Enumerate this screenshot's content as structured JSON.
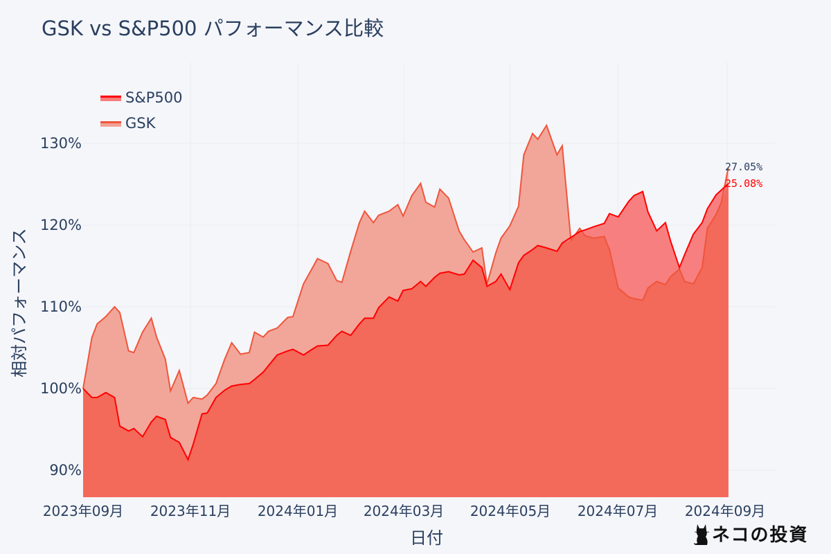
{
  "title": "GSK vs S&P500 パフォーマンス比較",
  "legend": [
    {
      "name": "S&P500",
      "line_color": "#ff0000",
      "fill_color": "#f87c7c"
    },
    {
      "name": "GSK",
      "line_color": "#ef553b",
      "fill_color": "#f1a195"
    }
  ],
  "axes": {
    "xlabel": "日付",
    "ylabel": "相対パフォーマンス",
    "yticks": [
      "130%",
      "120%",
      "110%",
      "100%",
      "90%"
    ],
    "xticks": [
      "2023年09月",
      "2023年11月",
      "2024年01月",
      "2024年03月",
      "2024年05月",
      "2024年07月",
      "2024年09月"
    ]
  },
  "end_labels": {
    "gsk": {
      "text": "27.05%",
      "color": "#2a3f5f"
    },
    "sp500": {
      "text": "25.08%",
      "color": "#ff0000"
    }
  },
  "watermark": {
    "text": "ネコの投資",
    "icon": "cat-icon"
  },
  "chart_data": {
    "type": "area",
    "title": "GSK vs S&P500 パフォーマンス比較",
    "xlabel": "日付",
    "ylabel": "相対パフォーマンス",
    "ylim": [
      86.5,
      139
    ],
    "yticks": [
      90,
      100,
      110,
      120,
      130
    ],
    "xticks": [
      "2023-09",
      "2023-11",
      "2024-01",
      "2024-03",
      "2024-05",
      "2024-07",
      "2024-09"
    ],
    "x_range": [
      "2023-08-31",
      "2024-09-30"
    ],
    "grid": true,
    "legend_position": "top-left",
    "x": [
      "2023-08-31",
      "2023-09-05",
      "2023-09-08",
      "2023-09-13",
      "2023-09-18",
      "2023-09-21",
      "2023-09-26",
      "2023-09-29",
      "2023-10-04",
      "2023-10-09",
      "2023-10-12",
      "2023-10-17",
      "2023-10-20",
      "2023-10-25",
      "2023-10-30",
      "2023-11-02",
      "2023-11-07",
      "2023-11-10",
      "2023-11-15",
      "2023-11-20",
      "2023-11-24",
      "2023-11-29",
      "2023-12-04",
      "2023-12-07",
      "2023-12-12",
      "2023-12-15",
      "2023-12-20",
      "2023-12-26",
      "2023-12-29",
      "2024-01-04",
      "2024-01-09",
      "2024-01-12",
      "2024-01-18",
      "2024-01-23",
      "2024-01-26",
      "2024-01-31",
      "2024-02-05",
      "2024-02-08",
      "2024-02-13",
      "2024-02-16",
      "2024-02-22",
      "2024-02-27",
      "2024-03-01",
      "2024-03-06",
      "2024-03-11",
      "2024-03-14",
      "2024-03-19",
      "2024-03-22",
      "2024-03-27",
      "2024-04-02",
      "2024-04-05",
      "2024-04-10",
      "2024-04-15",
      "2024-04-18",
      "2024-04-23",
      "2024-04-26",
      "2024-05-01",
      "2024-05-06",
      "2024-05-09",
      "2024-05-14",
      "2024-05-17",
      "2024-05-22",
      "2024-05-28",
      "2024-05-31",
      "2024-06-05",
      "2024-06-10",
      "2024-06-13",
      "2024-06-18",
      "2024-06-24",
      "2024-06-27",
      "2024-07-02",
      "2024-07-08",
      "2024-07-11",
      "2024-07-16",
      "2024-07-19",
      "2024-07-24",
      "2024-07-29",
      "2024-08-01",
      "2024-08-06",
      "2024-08-09",
      "2024-08-14",
      "2024-08-19",
      "2024-08-22",
      "2024-08-27",
      "2024-08-30",
      "2024-09-03"
    ],
    "series": [
      {
        "name": "S&P500",
        "values": [
          100.0,
          98.9,
          98.9,
          99.5,
          98.9,
          95.4,
          94.8,
          95.1,
          94.1,
          95.9,
          96.6,
          96.2,
          94.0,
          93.4,
          91.3,
          93.2,
          96.9,
          97.0,
          98.9,
          99.8,
          100.3,
          100.5,
          100.6,
          101.1,
          102.0,
          102.8,
          104.1,
          104.6,
          104.8,
          104.1,
          104.8,
          105.2,
          105.3,
          106.5,
          107.0,
          106.5,
          107.9,
          108.6,
          108.6,
          109.9,
          111.2,
          110.7,
          112.0,
          112.2,
          113.1,
          112.5,
          113.6,
          114.1,
          114.3,
          113.9,
          114.0,
          115.7,
          114.8,
          112.5,
          113.1,
          114.0,
          112.1,
          115.4,
          116.3,
          117.0,
          117.5,
          117.2,
          116.8,
          117.8,
          118.5,
          119.2,
          119.4,
          119.8,
          120.2,
          121.4,
          121.0,
          122.9,
          123.6,
          124.1,
          121.6,
          119.3,
          120.3,
          118.0,
          114.8,
          116.4,
          118.9,
          120.3,
          122.0,
          123.7,
          124.3,
          125.08
        ]
      },
      {
        "name": "GSK",
        "values": [
          100.0,
          106.2,
          107.9,
          108.8,
          110.0,
          109.3,
          104.6,
          104.4,
          106.9,
          108.6,
          106.3,
          103.6,
          99.7,
          102.2,
          98.2,
          98.9,
          98.7,
          99.2,
          100.6,
          103.6,
          105.6,
          104.2,
          104.4,
          106.9,
          106.3,
          107.0,
          107.4,
          108.7,
          108.8,
          112.8,
          114.7,
          115.9,
          115.3,
          113.2,
          113.0,
          116.8,
          120.3,
          121.7,
          120.3,
          121.2,
          121.7,
          122.5,
          121.1,
          123.6,
          125.1,
          122.8,
          122.2,
          124.4,
          123.3,
          119.3,
          118.2,
          116.7,
          117.2,
          112.8,
          116.6,
          118.4,
          119.9,
          122.3,
          128.6,
          131.2,
          130.5,
          132.2,
          128.6,
          129.7,
          118.1,
          119.6,
          118.7,
          118.4,
          118.6,
          117.0,
          112.3,
          111.2,
          111.0,
          110.8,
          112.3,
          113.1,
          112.7,
          113.7,
          114.6,
          113.1,
          112.8,
          114.8,
          119.6,
          121.3,
          122.8,
          127.05
        ]
      }
    ]
  }
}
